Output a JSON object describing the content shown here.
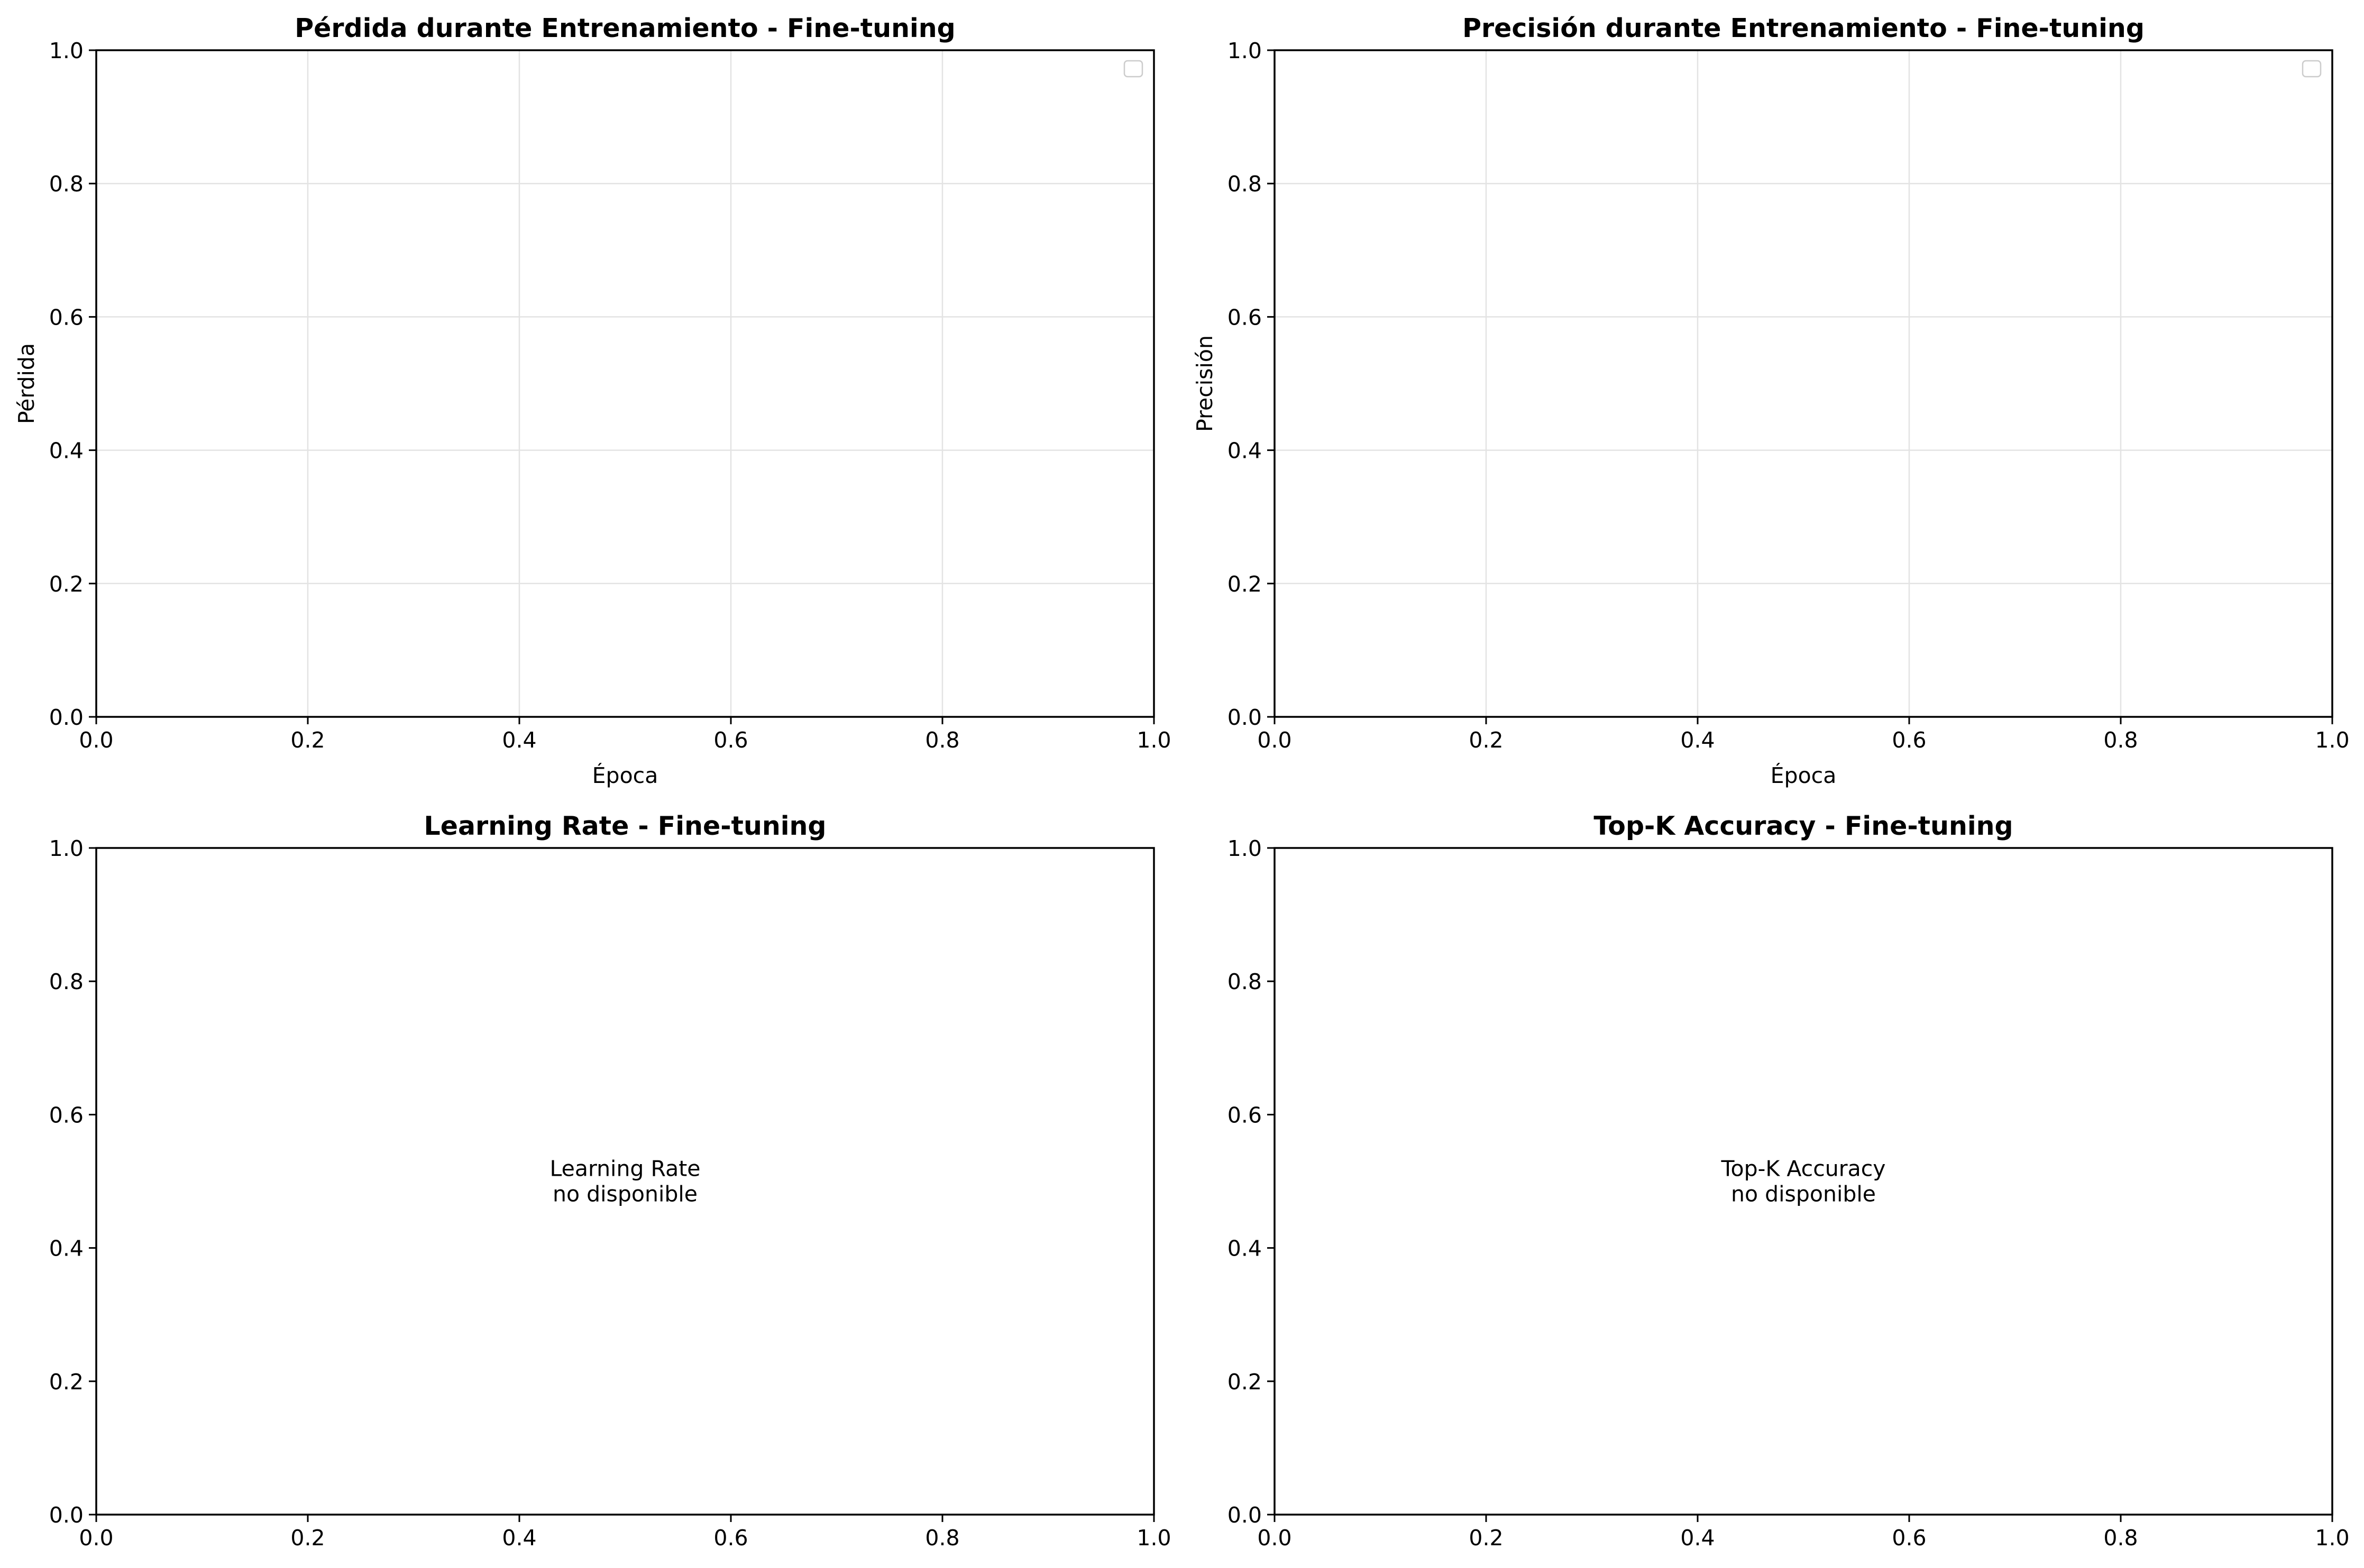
{
  "chart_data": [
    {
      "type": "line",
      "title": "Pérdida durante Entrenamiento - Fine-tuning",
      "xlabel": "Época",
      "ylabel": "Pérdida",
      "xlim": [
        0,
        1
      ],
      "ylim": [
        0,
        1
      ],
      "xticks": [
        "0.0",
        "0.2",
        "0.4",
        "0.6",
        "0.8",
        "1.0"
      ],
      "yticks": [
        "0.0",
        "0.2",
        "0.4",
        "0.6",
        "0.8",
        "1.0"
      ],
      "grid": true,
      "legend": "upper right",
      "series": [],
      "annotation": ""
    },
    {
      "type": "line",
      "title": "Precisión durante Entrenamiento - Fine-tuning",
      "xlabel": "Época",
      "ylabel": "Precisión",
      "xlim": [
        0,
        1
      ],
      "ylim": [
        0,
        1
      ],
      "xticks": [
        "0.0",
        "0.2",
        "0.4",
        "0.6",
        "0.8",
        "1.0"
      ],
      "yticks": [
        "0.0",
        "0.2",
        "0.4",
        "0.6",
        "0.8",
        "1.0"
      ],
      "grid": true,
      "legend": "upper right",
      "series": [],
      "annotation": ""
    },
    {
      "type": "line",
      "title": "Learning Rate - Fine-tuning",
      "xlabel": "",
      "ylabel": "",
      "xlim": [
        0,
        1
      ],
      "ylim": [
        0,
        1
      ],
      "xticks": [
        "0.0",
        "0.2",
        "0.4",
        "0.6",
        "0.8",
        "1.0"
      ],
      "yticks": [
        "0.0",
        "0.2",
        "0.4",
        "0.6",
        "0.8",
        "1.0"
      ],
      "grid": false,
      "legend": "none",
      "series": [],
      "annotation": "Learning Rate\nno disponible"
    },
    {
      "type": "line",
      "title": "Top-K Accuracy - Fine-tuning",
      "xlabel": "",
      "ylabel": "",
      "xlim": [
        0,
        1
      ],
      "ylim": [
        0,
        1
      ],
      "xticks": [
        "0.0",
        "0.2",
        "0.4",
        "0.6",
        "0.8",
        "1.0"
      ],
      "yticks": [
        "0.0",
        "0.2",
        "0.4",
        "0.6",
        "0.8",
        "1.0"
      ],
      "grid": false,
      "legend": "none",
      "series": [],
      "annotation": "Top-K Accuracy\nno disponible"
    }
  ]
}
